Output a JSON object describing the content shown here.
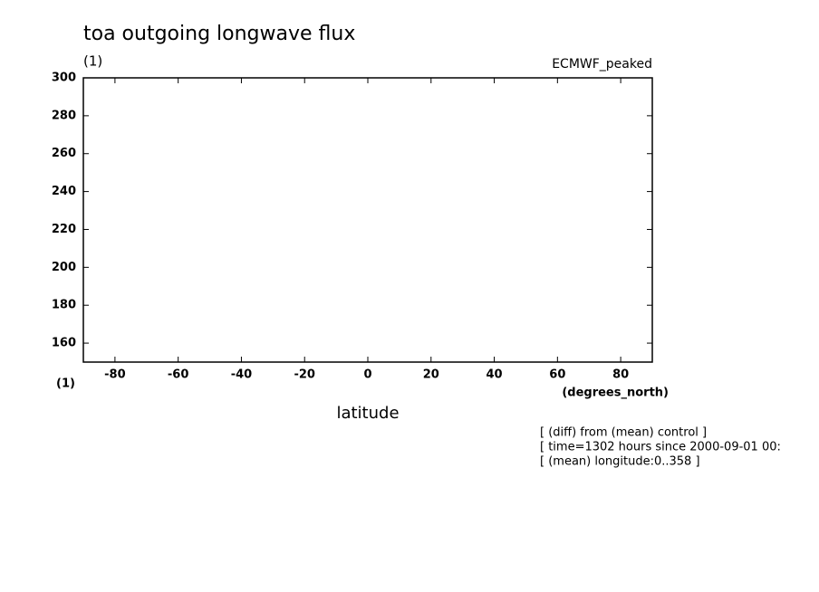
{
  "chart_data": {
    "type": "line",
    "title": "toa outgoing longwave flux",
    "y_units": "(1)",
    "dataset_label": "ECMWF_peaked",
    "x_units_left": "(1)",
    "x_units": "(degrees_north)",
    "xlabel": "latitude",
    "notes": [
      "[ (diff) from (mean) control ]",
      "[ time=1302 hours since 2000-09-01 00:",
      "[ (mean) longitude:0..358 ]"
    ],
    "xlim": [
      -90,
      90
    ],
    "xticks": [
      -80,
      -60,
      -40,
      -20,
      0,
      20,
      40,
      60,
      80
    ],
    "ylim": [
      150,
      300
    ],
    "yticks": [
      160,
      180,
      200,
      220,
      240,
      260,
      280,
      300
    ]
  }
}
